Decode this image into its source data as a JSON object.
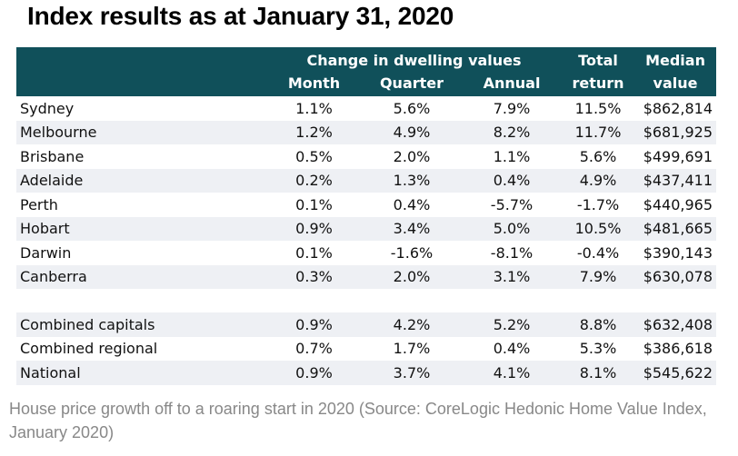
{
  "title": "Index results as at January 31, 2020",
  "table": {
    "group_header": "Change in dwelling values",
    "total_header_line1": "Total",
    "total_header_line2": "return",
    "median_header_line1": "Median",
    "median_header_line2": "value",
    "subheaders": [
      "Month",
      "Quarter",
      "Annual"
    ],
    "rows": [
      {
        "name": "Sydney",
        "month": "1.1%",
        "quarter": "5.6%",
        "annual": "7.9%",
        "total": "11.5%",
        "median": "$862,814"
      },
      {
        "name": "Melbourne",
        "month": "1.2%",
        "quarter": "4.9%",
        "annual": "8.2%",
        "total": "11.7%",
        "median": "$681,925"
      },
      {
        "name": "Brisbane",
        "month": "0.5%",
        "quarter": "2.0%",
        "annual": "1.1%",
        "total": "5.6%",
        "median": "$499,691"
      },
      {
        "name": "Adelaide",
        "month": "0.2%",
        "quarter": "1.3%",
        "annual": "0.4%",
        "total": "4.9%",
        "median": "$437,411"
      },
      {
        "name": "Perth",
        "month": "0.1%",
        "quarter": "0.4%",
        "annual": "-5.7%",
        "total": "-1.7%",
        "median": "$440,965"
      },
      {
        "name": "Hobart",
        "month": "0.9%",
        "quarter": "3.4%",
        "annual": "5.0%",
        "total": "10.5%",
        "median": "$481,665"
      },
      {
        "name": "Darwin",
        "month": "0.1%",
        "quarter": "-1.6%",
        "annual": "-8.1%",
        "total": "-0.4%",
        "median": "$390,143"
      },
      {
        "name": "Canberra",
        "month": "0.3%",
        "quarter": "2.0%",
        "annual": "3.1%",
        "total": "7.9%",
        "median": "$630,078"
      }
    ],
    "summary_rows": [
      {
        "name": "Combined capitals",
        "month": "0.9%",
        "quarter": "4.2%",
        "annual": "5.2%",
        "total": "8.8%",
        "median": "$632,408"
      },
      {
        "name": "Combined regional",
        "month": "0.7%",
        "quarter": "1.7%",
        "annual": "0.4%",
        "total": "5.3%",
        "median": "$386,618"
      },
      {
        "name": "National",
        "month": "0.9%",
        "quarter": "3.7%",
        "annual": "4.1%",
        "total": "8.1%",
        "median": "$545,622"
      }
    ]
  },
  "caption": "House price growth off to a roaring start in 2020 (Source: CoreLogic Hedonic Home Value Index, January 2020)",
  "colors": {
    "header_bg": "#10505a",
    "header_text": "#ffffff",
    "stripe": "#eef0f4",
    "caption_text": "#888888"
  }
}
